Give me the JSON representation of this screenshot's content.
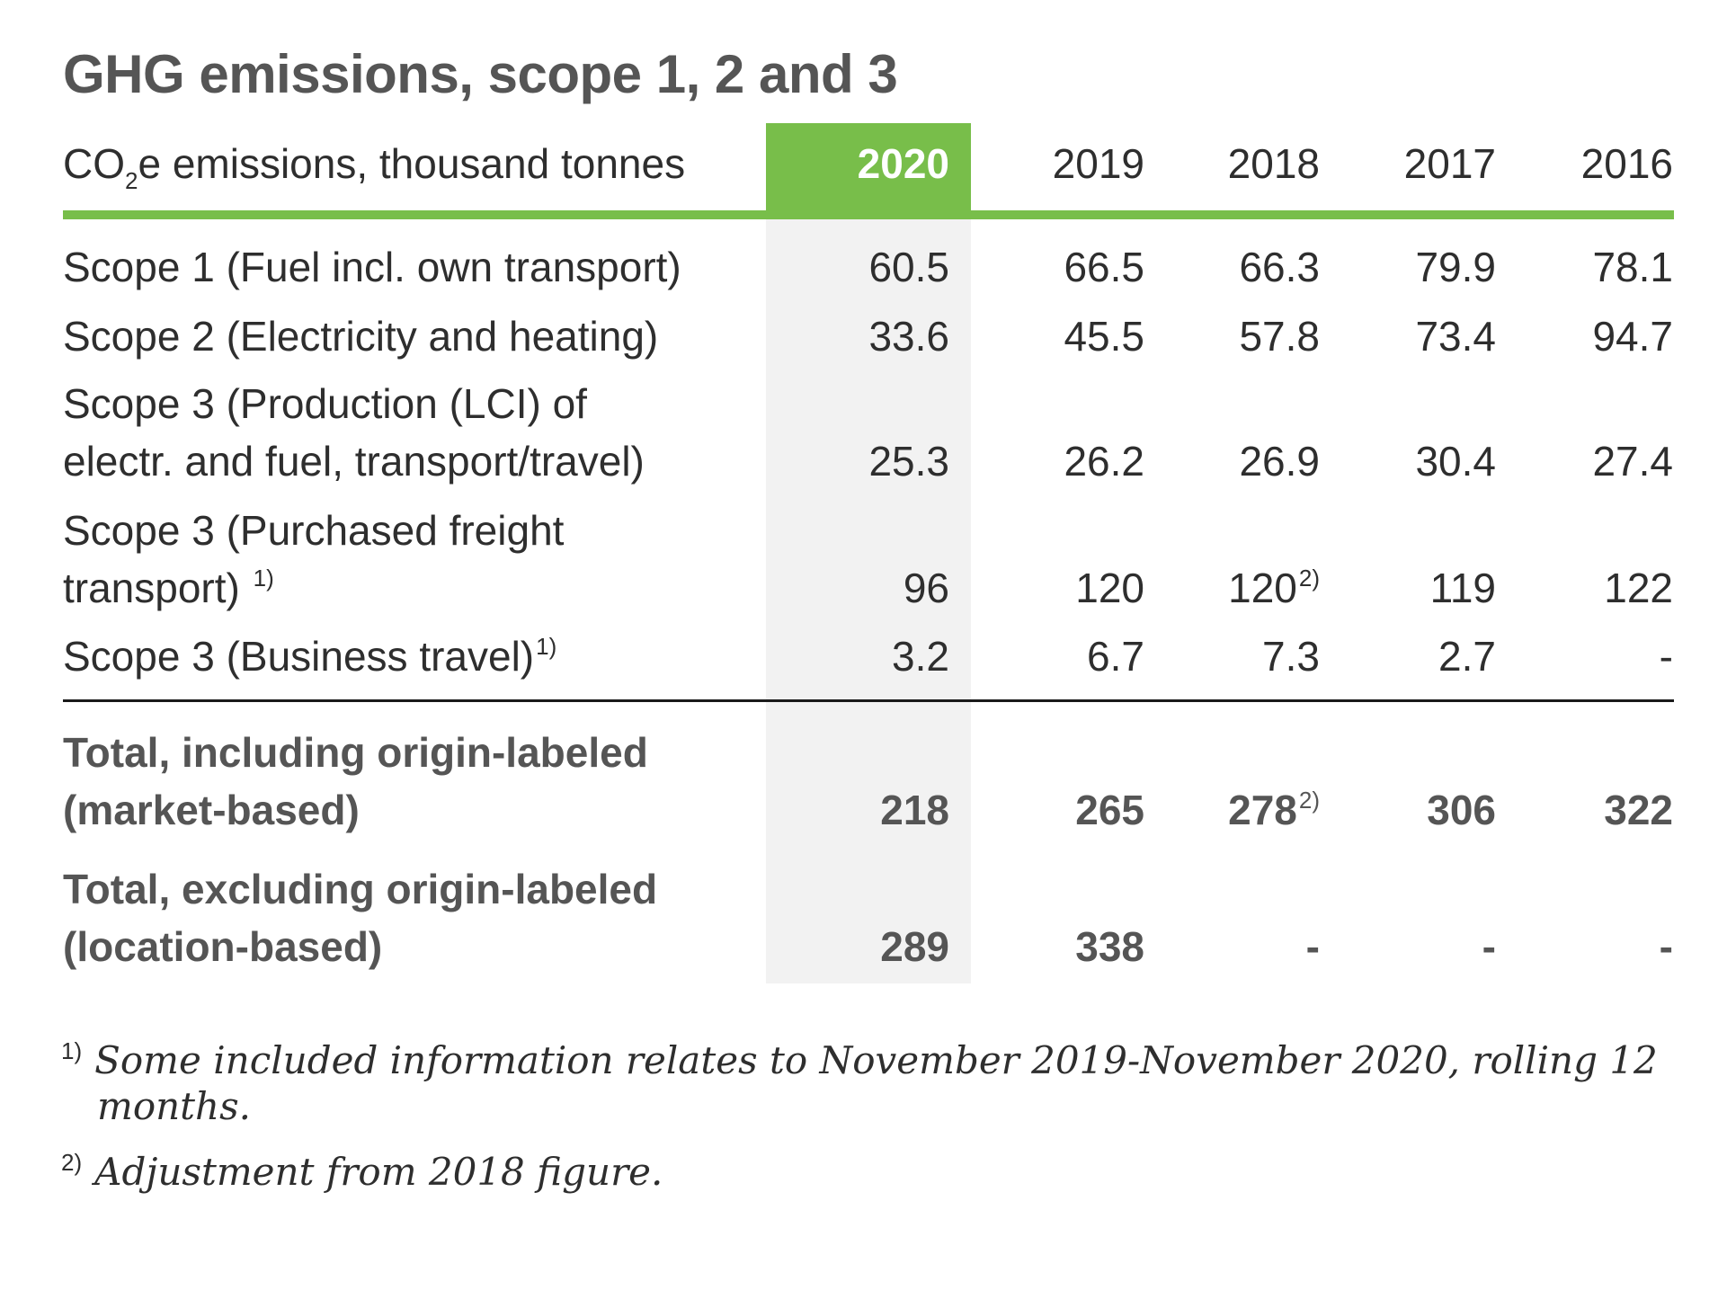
{
  "title": "GHG emissions, scope 1, 2 and 3",
  "header": {
    "label_prefix": "CO",
    "label_sub": "2",
    "label_suffix": "e emissions, thousand tonnes",
    "years": [
      "2020",
      "2019",
      "2018",
      "2017",
      "2016"
    ]
  },
  "rows": [
    {
      "line1": "Scope 1 (Fuel incl. own transport)",
      "values": [
        "60.5",
        "66.5",
        "66.3",
        "79.9",
        "78.1"
      ]
    },
    {
      "line1": "Scope 2 (Electricity and heating)",
      "values": [
        "33.6",
        "45.5",
        "57.8",
        "73.4",
        "94.7"
      ]
    },
    {
      "line1": "Scope 3 (Production (LCI) of",
      "line2": "electr. and fuel, transport/travel)",
      "values": [
        "25.3",
        "26.2",
        "26.9",
        "30.4",
        "27.4"
      ]
    },
    {
      "line1": "Scope 3 (Purchased freight",
      "line2": "transport)",
      "line2_note": "1)",
      "values": [
        "96",
        "120",
        "120",
        "119",
        "122"
      ],
      "value_notes": [
        "",
        "",
        "2)",
        "",
        ""
      ]
    },
    {
      "line1": "Scope 3 (Business travel)",
      "line1_note": "1)",
      "values": [
        "3.2",
        "6.7",
        "7.3",
        "2.7",
        "-"
      ]
    }
  ],
  "totals": [
    {
      "line1": "Total, including origin-labeled",
      "line2": "(market-based)",
      "values": [
        "218",
        "265",
        "278",
        "306",
        "322"
      ],
      "value_notes": [
        "",
        "",
        "2)",
        "",
        ""
      ]
    },
    {
      "line1": "Total, excluding origin-labeled",
      "line2": "(location-based)",
      "values": [
        "289",
        "338",
        "-",
        "-",
        "-"
      ]
    }
  ],
  "footnotes": [
    {
      "mark": "1)",
      "line1": "Some included information relates to November 2019-November 2020, rolling 12",
      "line2": "months."
    },
    {
      "mark": "2)",
      "line1": "Adjustment from 2018 figure."
    }
  ],
  "colors": {
    "accent_green": "#78be4a",
    "highlight_column": "#f2f2f2",
    "title_gray": "#555555",
    "text": "#2e2e2e"
  }
}
